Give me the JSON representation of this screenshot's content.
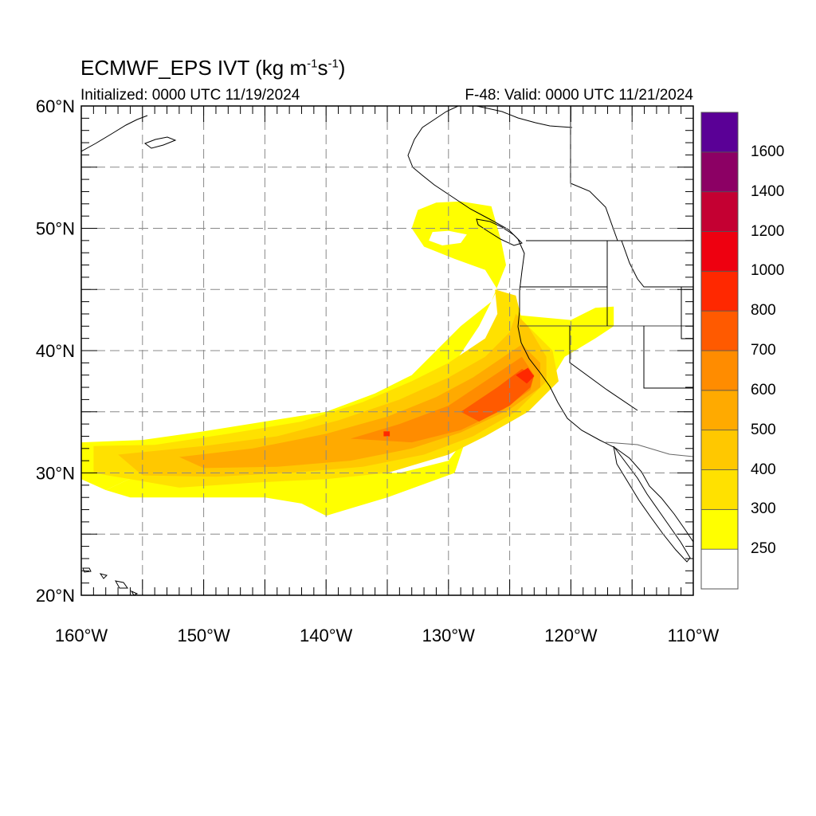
{
  "title": {
    "main": "ECMWF_EPS IVT (kg m",
    "exp1": "-1",
    "mid": "s",
    "exp2": "-1",
    "close": ")"
  },
  "initialized": "Initialized: 0000 UTC 11/19/2024",
  "valid": "F-48: Valid: 0000 UTC 11/21/2024",
  "map": {
    "lon_range": [
      -160,
      -110
    ],
    "lat_range": [
      20,
      60
    ],
    "grid_spacing_deg": 5,
    "grid_style": "dashed",
    "lat_labels": [
      {
        "lat": 60,
        "text": "60°N"
      },
      {
        "lat": 50,
        "text": "50°N"
      },
      {
        "lat": 40,
        "text": "40°N"
      },
      {
        "lat": 30,
        "text": "30°N"
      },
      {
        "lat": 20,
        "text": "20°N"
      }
    ],
    "lon_labels": [
      {
        "lon": -160,
        "text": "160°W"
      },
      {
        "lon": -150,
        "text": "150°W"
      },
      {
        "lon": -140,
        "text": "140°W"
      },
      {
        "lon": -130,
        "text": "130°W"
      },
      {
        "lon": -120,
        "text": "120°W"
      },
      {
        "lon": -110,
        "text": "110°W"
      }
    ]
  },
  "colorbar": {
    "levels": [
      250,
      300,
      400,
      500,
      600,
      700,
      800,
      1000,
      1200,
      1400,
      1600
    ],
    "labels": [
      "250",
      "300",
      "400",
      "500",
      "600",
      "700",
      "800",
      "1000",
      "1200",
      "1400",
      "1600"
    ],
    "colors": [
      "#ffffff",
      "#ffff00",
      "#ffe100",
      "#ffc800",
      "#ffaa00",
      "#ff8c00",
      "#ff5a00",
      "#ff2800",
      "#ee0010",
      "#c40032",
      "#8c0064",
      "#5a0096"
    ]
  },
  "ivt_features": [
    {
      "name": "main-plume",
      "level": 250,
      "poly": [
        [
          -160,
          32.5
        ],
        [
          -155,
          32.7
        ],
        [
          -150,
          33.4
        ],
        [
          -145,
          34.2
        ],
        [
          -140,
          35
        ],
        [
          -136,
          36.5
        ],
        [
          -133,
          38
        ],
        [
          -131,
          40
        ],
        [
          -129,
          42
        ],
        [
          -126.5,
          44
        ],
        [
          -125.3,
          47
        ],
        [
          -125.7,
          49
        ],
        [
          -126.5,
          51.8
        ],
        [
          -129,
          52.2
        ],
        [
          -131,
          52.1
        ],
        [
          -132.5,
          51.5
        ],
        [
          -133,
          50
        ],
        [
          -132,
          48.5
        ],
        [
          -129.5,
          47.5
        ],
        [
          -127,
          46.6
        ],
        [
          -126,
          45
        ],
        [
          -127.5,
          42
        ],
        [
          -129.5,
          39
        ],
        [
          -130.5,
          38
        ],
        [
          -132,
          37
        ],
        [
          -134.5,
          36
        ],
        [
          -137,
          35
        ],
        [
          -140,
          33.5
        ],
        [
          -144,
          32
        ],
        [
          -150,
          31
        ],
        [
          -153.5,
          30.5
        ],
        [
          -155,
          30
        ],
        [
          -158,
          28.6
        ],
        [
          -160,
          29.5
        ]
      ]
    },
    {
      "name": "south-lobe",
      "level": 250,
      "poly": [
        [
          -146,
          30
        ],
        [
          -140,
          30
        ],
        [
          -134,
          30
        ],
        [
          -130,
          31
        ],
        [
          -128.5,
          33
        ],
        [
          -129.5,
          30
        ],
        [
          -135,
          28
        ],
        [
          -140,
          26.5
        ],
        [
          -142,
          27.5
        ],
        [
          -145,
          28
        ],
        [
          -152,
          28
        ],
        [
          -156,
          28
        ],
        [
          -158,
          28.6
        ],
        [
          -155,
          30
        ],
        [
          -150,
          30.5
        ]
      ]
    },
    {
      "name": "inland-lobe",
      "level": 250,
      "poly": [
        [
          -125.5,
          43
        ],
        [
          -120,
          42.5
        ],
        [
          -118,
          43.5
        ],
        [
          -116.5,
          43.6
        ],
        [
          -116.5,
          42
        ],
        [
          -118,
          41
        ],
        [
          -120.5,
          39.5
        ],
        [
          -122,
          37
        ],
        [
          -123.5,
          36
        ]
      ]
    },
    {
      "name": "ring-hole",
      "level": 0,
      "poly": [
        [
          -131.3,
          49.7
        ],
        [
          -130,
          49.8
        ],
        [
          -128.5,
          49.5
        ],
        [
          -129,
          48.8
        ],
        [
          -130.5,
          48.6
        ],
        [
          -131.6,
          49
        ]
      ]
    },
    {
      "name": "band-300",
      "level": 300,
      "poly": [
        [
          -159,
          32.2
        ],
        [
          -154,
          32.3
        ],
        [
          -148,
          33.2
        ],
        [
          -142,
          34.2
        ],
        [
          -137,
          35.8
        ],
        [
          -133,
          37.5
        ],
        [
          -130,
          39
        ],
        [
          -127,
          41
        ],
        [
          -126,
          43
        ],
        [
          -126.2,
          45
        ],
        [
          -124.5,
          44.5
        ],
        [
          -124,
          42.5
        ],
        [
          -121.5,
          40
        ],
        [
          -121,
          37.5
        ],
        [
          -123.5,
          35
        ],
        [
          -127,
          33
        ],
        [
          -130,
          31.5
        ],
        [
          -135,
          30
        ],
        [
          -140,
          29.5
        ],
        [
          -146,
          29.2
        ],
        [
          -152,
          28.8
        ],
        [
          -156,
          29.5
        ],
        [
          -159,
          30
        ]
      ]
    },
    {
      "name": "band-400",
      "level": 400,
      "poly": [
        [
          -157,
          31.5
        ],
        [
          -150,
          32.2
        ],
        [
          -144,
          33
        ],
        [
          -139,
          34.3
        ],
        [
          -134,
          36
        ],
        [
          -130,
          37.8
        ],
        [
          -127,
          39.5
        ],
        [
          -125,
          41.5
        ],
        [
          -124.5,
          43
        ],
        [
          -123.5,
          42
        ],
        [
          -122,
          39.5
        ],
        [
          -122,
          37.5
        ],
        [
          -124.5,
          35
        ],
        [
          -128,
          33
        ],
        [
          -132,
          31.5
        ],
        [
          -137,
          30.5
        ],
        [
          -143,
          30
        ],
        [
          -149,
          29.7
        ],
        [
          -155,
          29.8
        ]
      ]
    },
    {
      "name": "band-500",
      "level": 500,
      "poly": [
        [
          -152,
          31.3
        ],
        [
          -146,
          32
        ],
        [
          -140,
          33.2
        ],
        [
          -135,
          34.6
        ],
        [
          -131,
          36.2
        ],
        [
          -128,
          37.8
        ],
        [
          -125.5,
          39.5
        ],
        [
          -124,
          40.5
        ],
        [
          -122.5,
          39
        ],
        [
          -122.5,
          37
        ],
        [
          -125,
          35.2
        ],
        [
          -129,
          33.3
        ],
        [
          -133,
          32
        ],
        [
          -138,
          31
        ],
        [
          -144,
          30.5
        ],
        [
          -150,
          30.4
        ]
      ]
    },
    {
      "name": "band-600",
      "level": 600,
      "poly": [
        [
          -138,
          32.8
        ],
        [
          -134,
          34
        ],
        [
          -130,
          35.5
        ],
        [
          -127,
          37.5
        ],
        [
          -124,
          39.5
        ],
        [
          -123,
          38
        ],
        [
          -123.3,
          36.8
        ],
        [
          -125.5,
          35.2
        ],
        [
          -129,
          33.5
        ],
        [
          -133,
          32.5
        ]
      ]
    },
    {
      "name": "band-700",
      "level": 700,
      "poly": [
        [
          -129,
          35
        ],
        [
          -126,
          37
        ],
        [
          -124,
          38.5
        ],
        [
          -123,
          38
        ],
        [
          -123.3,
          37
        ],
        [
          -125,
          35.5
        ],
        [
          -127.5,
          34.2
        ]
      ]
    },
    {
      "name": "band-800",
      "level": 800,
      "poly": [
        [
          -124.5,
          38
        ],
        [
          -123.5,
          38.6
        ],
        [
          -123,
          37.9
        ],
        [
          -123.6,
          37.3
        ]
      ]
    },
    {
      "name": "band-800b",
      "level": 800,
      "poly": [
        [
          -135.3,
          33.4
        ],
        [
          -134.8,
          33.4
        ],
        [
          -134.8,
          33
        ],
        [
          -135.3,
          33
        ]
      ]
    }
  ]
}
